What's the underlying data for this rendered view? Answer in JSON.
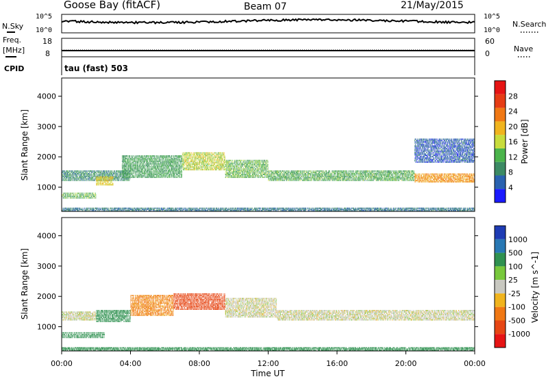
{
  "header": {
    "station": "Goose Bay (fitACF)",
    "beam": "Beam 07",
    "date": "21/May/2015"
  },
  "panels": {
    "nsky": {
      "label": "N.Sky",
      "tick_top": "10^5",
      "tick_bottom": "10^0",
      "right_label": "N.Search",
      "right_tick_top": "10^5",
      "right_tick_bottom": "10^0"
    },
    "freq": {
      "label_line1": "Freq.",
      "label_line2": "[MHz]",
      "tick_top": "18",
      "tick_bottom": "8",
      "right_label": "Nave",
      "right_tick_top": "60",
      "right_tick_bottom": "0"
    },
    "cpid": {
      "label": "CPID",
      "value": "tau (fast) 503"
    }
  },
  "chart_data": [
    {
      "type": "heatmap",
      "name": "power",
      "ylabel": "Slant Range [km]",
      "yticks": [
        1000,
        2000,
        3000,
        4000
      ],
      "ylim": [
        200,
        4600
      ],
      "xlim": [
        0,
        24
      ],
      "colorbar_label": "Power [dB]",
      "colorbar_ticks": [
        4,
        8,
        12,
        16,
        20,
        24,
        28
      ],
      "colorbar_colors": [
        "#1a1aff",
        "#2a62b0",
        "#3c8a64",
        "#4bb44b",
        "#c8dc3c",
        "#f0b41e",
        "#f07814",
        "#e63c14",
        "#e61414"
      ],
      "bands": [
        {
          "t0": 0.0,
          "t1": 2.0,
          "r0": 620,
          "r1": 820,
          "power": 14
        },
        {
          "t0": 0.0,
          "t1": 4.0,
          "r0": 1200,
          "r1": 1550,
          "power": 10
        },
        {
          "t0": 2.0,
          "t1": 3.0,
          "r0": 1050,
          "r1": 1350,
          "power": 20
        },
        {
          "t0": 3.5,
          "t1": 7.0,
          "r0": 1300,
          "r1": 2050,
          "power": 12
        },
        {
          "t0": 7.0,
          "t1": 9.5,
          "r0": 1550,
          "r1": 2150,
          "power": 18
        },
        {
          "t0": 9.5,
          "t1": 12.0,
          "r0": 1300,
          "r1": 1900,
          "power": 14
        },
        {
          "t0": 12.0,
          "t1": 20.5,
          "r0": 1200,
          "r1": 1550,
          "power": 13
        },
        {
          "t0": 20.5,
          "t1": 24.0,
          "r0": 1150,
          "r1": 1450,
          "power": 24
        },
        {
          "t0": 20.5,
          "t1": 24.0,
          "r0": 1800,
          "r1": 2600,
          "power": 6
        },
        {
          "t0": 0.0,
          "t1": 24.0,
          "r0": 200,
          "r1": 320,
          "power": 8
        }
      ]
    },
    {
      "type": "heatmap",
      "name": "velocity",
      "ylabel": "Slant Range [km]",
      "yticks": [
        1000,
        2000,
        3000,
        4000
      ],
      "ylim": [
        200,
        4600
      ],
      "xlim": [
        0,
        24
      ],
      "xticks": [
        "00:00",
        "04:00",
        "08:00",
        "12:00",
        "16:00",
        "20:00",
        "00:00"
      ],
      "xlabel": "Time UT",
      "colorbar_label": "Velocity [m s^-1]",
      "colorbar_ticks": [
        "1000",
        "500",
        "100",
        "25",
        "-25",
        "-100",
        "-500",
        "-1000"
      ],
      "colorbar_colors": [
        "#1e3cb4",
        "#2878b4",
        "#2f9150",
        "#78c83c",
        "#c8c8c0",
        "#f0b41e",
        "#f07814",
        "#e64614",
        "#e61414"
      ],
      "bands": [
        {
          "t0": 0.0,
          "t1": 2.5,
          "r0": 620,
          "r1": 820,
          "velocity": 150
        },
        {
          "t0": 0.0,
          "t1": 2.0,
          "r0": 1200,
          "r1": 1500,
          "velocity": 0
        },
        {
          "t0": 2.0,
          "t1": 4.0,
          "r0": 1150,
          "r1": 1550,
          "velocity": 200
        },
        {
          "t0": 4.0,
          "t1": 6.5,
          "r0": 1350,
          "r1": 2050,
          "velocity": -120
        },
        {
          "t0": 6.5,
          "t1": 9.5,
          "r0": 1550,
          "r1": 2100,
          "velocity": -600
        },
        {
          "t0": 9.5,
          "t1": 12.5,
          "r0": 1300,
          "r1": 1950,
          "velocity": 0
        },
        {
          "t0": 12.5,
          "t1": 24.0,
          "r0": 1200,
          "r1": 1550,
          "velocity": 0
        },
        {
          "t0": 0.0,
          "t1": 24.0,
          "r0": 200,
          "r1": 320,
          "velocity": 300
        }
      ]
    }
  ]
}
